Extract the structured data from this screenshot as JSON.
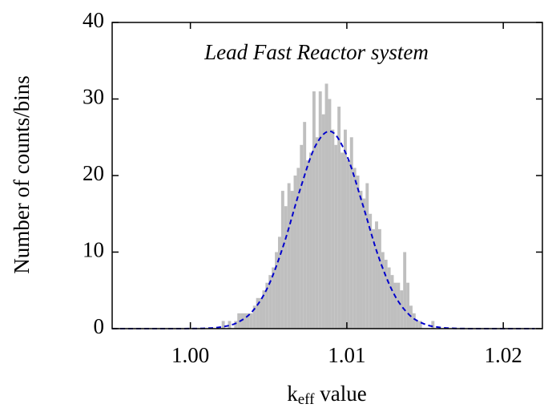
{
  "chart_data": [
    {
      "type": "histogram",
      "annotation": "Lead Fast Reactor system",
      "xlabel": [
        "k",
        "eff",
        " value"
      ],
      "ylabel": "Number of counts/bins",
      "bins": [
        1.002,
        1.0022,
        1.0024,
        1.0026,
        1.0028,
        1.003,
        1.0032,
        1.0034,
        1.0036,
        1.0038,
        1.004,
        1.0042,
        1.0044,
        1.0046,
        1.0048,
        1.005,
        1.0052,
        1.0054,
        1.0056,
        1.0058,
        1.006,
        1.0062,
        1.0064,
        1.0066,
        1.0068,
        1.007,
        1.0072,
        1.0074,
        1.0076,
        1.0078,
        1.008,
        1.0082,
        1.0084,
        1.0086,
        1.0088,
        1.009,
        1.0092,
        1.0094,
        1.0096,
        1.0098,
        1.01,
        1.0102,
        1.0104,
        1.0106,
        1.0108,
        1.011,
        1.0112,
        1.0114,
        1.0116,
        1.0118,
        1.012,
        1.0122,
        1.0124,
        1.0126,
        1.0128,
        1.013,
        1.0132,
        1.0134,
        1.0136,
        1.0138,
        1.014,
        1.0142,
        1.0144,
        1.0146,
        1.0148,
        1.015,
        1.0152,
        1.0154,
        1.0156
      ],
      "values": [
        1,
        0,
        1,
        0,
        1,
        2,
        2,
        2,
        2,
        2,
        3,
        4,
        4,
        5,
        6,
        7,
        8,
        10,
        12,
        18,
        16,
        19,
        18,
        20,
        21,
        24,
        27,
        22,
        23,
        31,
        25,
        31,
        28,
        32,
        30,
        26,
        24,
        29,
        23,
        26,
        22,
        25,
        21,
        20,
        18,
        17,
        19,
        15,
        13,
        14,
        13,
        10,
        9,
        8,
        7,
        6,
        6,
        5,
        10,
        6,
        3,
        2,
        1,
        1,
        0,
        0,
        0,
        1
      ],
      "color": "#bfbfbf",
      "xlim": [
        0.995,
        1.0225
      ],
      "ylim": [
        0,
        40
      ],
      "xticks": [
        {
          "value": 1.0,
          "label": "1.00"
        },
        {
          "value": 1.01,
          "label": "1.01"
        },
        {
          "value": 1.02,
          "label": "1.02"
        }
      ],
      "yticks": [
        0,
        10,
        20,
        30,
        40
      ]
    },
    {
      "type": "line",
      "x": [
        0.995,
        0.996,
        0.997,
        0.998,
        0.999,
        1.0,
        1.001,
        1.002,
        1.003,
        1.004,
        1.005,
        1.006,
        1.007,
        1.008,
        1.009,
        1.01,
        1.011,
        1.012,
        1.013,
        1.014,
        1.015,
        1.016,
        1.017,
        1.018,
        1.019,
        1.02,
        1.021,
        1.022
      ],
      "values": [
        0,
        0,
        0,
        0,
        0,
        0.01,
        0.05,
        0.22,
        0.79,
        2.34,
        5.65,
        11.2,
        18.1,
        23.9,
        25.75,
        22.6,
        16.3,
        9.55,
        4.57,
        1.79,
        0.57,
        0.15,
        0.03,
        0,
        0,
        0,
        0,
        0
      ],
      "color": "#0000cc",
      "dashed": true
    }
  ]
}
